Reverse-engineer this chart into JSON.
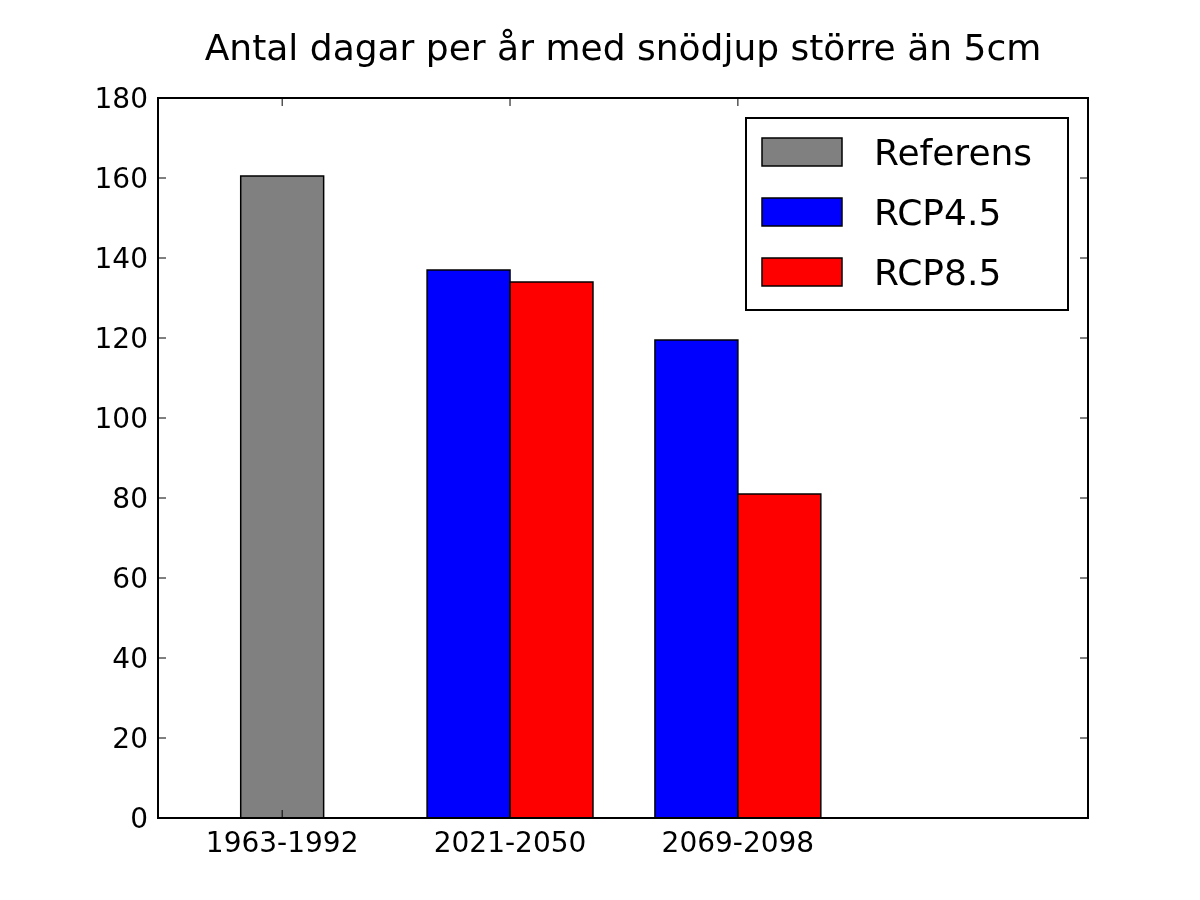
{
  "chart_data": {
    "type": "bar",
    "title": "Antal dagar per år med snödjup större än 5cm",
    "categories": [
      "1963-1992",
      "2021-2050",
      "2069-2098"
    ],
    "ylim": [
      0,
      180
    ],
    "yticks": [
      0,
      20,
      40,
      60,
      80,
      100,
      120,
      140,
      160,
      180
    ],
    "series": [
      {
        "name": "Referens",
        "color": "#808080",
        "values": [
          160.5,
          null,
          null
        ]
      },
      {
        "name": "RCP4.5",
        "color": "#0000ff",
        "values": [
          null,
          137,
          119.5
        ]
      },
      {
        "name": "RCP8.5",
        "color": "#ff0000",
        "values": [
          null,
          134,
          81
        ]
      }
    ],
    "legend": "top right",
    "grid": false
  }
}
